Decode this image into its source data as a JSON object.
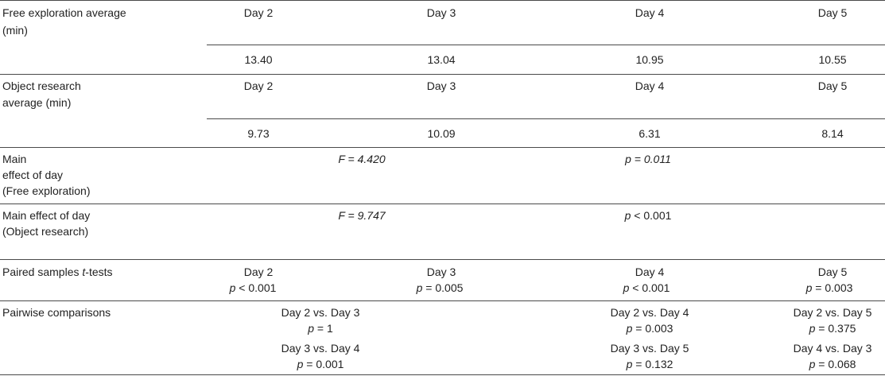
{
  "rows": {
    "free": {
      "label": [
        "Free exploration average",
        "(min)"
      ],
      "days": [
        "Day 2",
        "Day 3",
        "Day 4",
        "Day 5"
      ],
      "values": [
        "13.40",
        "13.04",
        "10.95",
        "10.55"
      ]
    },
    "object": {
      "label": [
        "Object research",
        "average (min)"
      ],
      "days": [
        "Day 2",
        "Day 3",
        "Day 4",
        "Day 5"
      ],
      "values": [
        "9.73",
        "10.09",
        "6.31",
        "8.14"
      ]
    },
    "main_free": {
      "label": [
        "Main",
        "effect of day",
        "(Free exploration)"
      ],
      "f": "F = 4.420",
      "p": "p = 0.011"
    },
    "main_object": {
      "label": [
        "Main effect of day",
        "(Object research)"
      ],
      "f": "F = 9.747",
      "p_var": "p",
      "p_rest": " < 0.001"
    },
    "paired": {
      "label_prefix": "Paired samples ",
      "label_t": "t",
      "label_suffix": "-tests",
      "days": [
        "Day 2",
        "Day 3",
        "Day 4",
        "Day 5"
      ],
      "p_var": "p",
      "p_rest": [
        " < 0.001",
        " = 0.005",
        " < 0.001",
        " = 0.003"
      ]
    },
    "pairwise": {
      "label": "Pairwise comparisons",
      "p_var": "p",
      "pairs": [
        {
          "comparison": "Day 2 vs. Day 3",
          "p_rest": " = 1"
        },
        {
          "comparison": "Day 2 vs. Day 4",
          "p_rest": " = 0.003"
        },
        {
          "comparison": "Day 2 vs. Day 5",
          "p_rest": " = 0.375"
        },
        {
          "comparison": "Day 3 vs. Day 4",
          "p_rest": " = 0.001"
        },
        {
          "comparison": "Day 3 vs. Day 5",
          "p_rest": " = 0.132"
        },
        {
          "comparison": "Day 4 vs. Day 3",
          "p_rest": " = 0.068"
        }
      ]
    }
  }
}
